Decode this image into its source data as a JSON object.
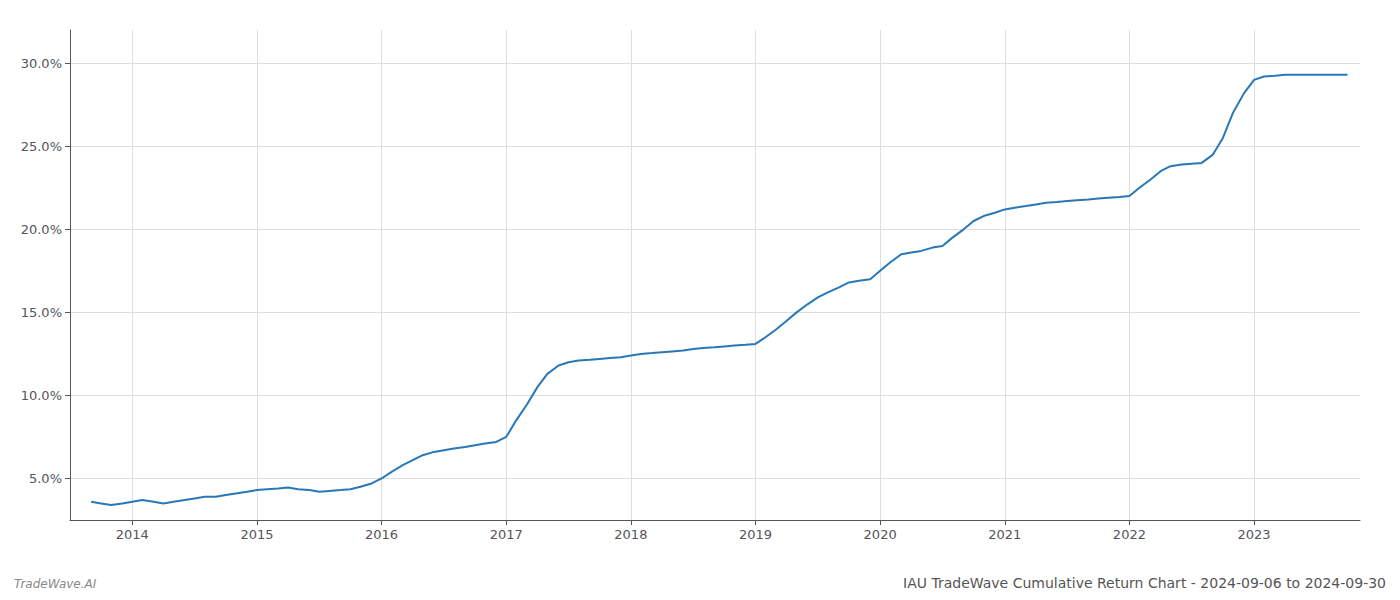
{
  "chart_data": {
    "type": "line",
    "title": "IAU TradeWave Cumulative Return Chart - 2024-09-06 to 2024-09-30",
    "annotations": [
      "TradeWave.AI"
    ],
    "color": "#2878b8",
    "grid": true,
    "x": [
      2013.67,
      2013.75,
      2013.83,
      2013.92,
      2014.0,
      2014.08,
      2014.17,
      2014.25,
      2014.33,
      2014.42,
      2014.5,
      2014.58,
      2014.67,
      2014.75,
      2014.83,
      2014.92,
      2015.0,
      2015.08,
      2015.17,
      2015.25,
      2015.33,
      2015.42,
      2015.5,
      2015.58,
      2015.67,
      2015.75,
      2015.83,
      2015.92,
      2016.0,
      2016.08,
      2016.17,
      2016.25,
      2016.33,
      2016.42,
      2016.5,
      2016.58,
      2016.67,
      2016.75,
      2016.83,
      2016.92,
      2017.0,
      2017.08,
      2017.17,
      2017.25,
      2017.33,
      2017.42,
      2017.5,
      2017.58,
      2017.67,
      2017.75,
      2017.83,
      2017.92,
      2018.0,
      2018.08,
      2018.17,
      2018.25,
      2018.33,
      2018.42,
      2018.5,
      2018.58,
      2018.67,
      2018.75,
      2018.83,
      2018.92,
      2019.0,
      2019.08,
      2019.17,
      2019.25,
      2019.33,
      2019.42,
      2019.5,
      2019.58,
      2019.67,
      2019.75,
      2019.83,
      2019.92,
      2020.0,
      2020.08,
      2020.17,
      2020.25,
      2020.33,
      2020.42,
      2020.5,
      2020.58,
      2020.67,
      2020.75,
      2020.83,
      2020.92,
      2021.0,
      2021.08,
      2021.17,
      2021.25,
      2021.33,
      2021.42,
      2021.5,
      2021.58,
      2021.67,
      2021.75,
      2021.83,
      2021.92,
      2022.0,
      2022.08,
      2022.17,
      2022.25,
      2022.33,
      2022.42,
      2022.5,
      2022.58,
      2022.67,
      2022.75,
      2022.83,
      2022.92,
      2023.0,
      2023.08,
      2023.17,
      2023.25,
      2023.33,
      2023.42,
      2023.5,
      2023.58,
      2023.67,
      2023.75
    ],
    "values": [
      3.6,
      3.5,
      3.4,
      3.5,
      3.6,
      3.7,
      3.6,
      3.5,
      3.6,
      3.7,
      3.8,
      3.9,
      3.9,
      4.0,
      4.1,
      4.2,
      4.3,
      4.35,
      4.4,
      4.45,
      4.35,
      4.3,
      4.2,
      4.25,
      4.3,
      4.35,
      4.5,
      4.7,
      5.0,
      5.4,
      5.8,
      6.1,
      6.4,
      6.6,
      6.7,
      6.8,
      6.9,
      7.0,
      7.1,
      7.2,
      7.5,
      8.5,
      9.5,
      10.5,
      11.3,
      11.8,
      12.0,
      12.1,
      12.15,
      12.2,
      12.25,
      12.3,
      12.4,
      12.5,
      12.55,
      12.6,
      12.65,
      12.7,
      12.8,
      12.85,
      12.9,
      12.95,
      13.0,
      13.05,
      13.1,
      13.5,
      14.0,
      14.5,
      15.0,
      15.5,
      15.9,
      16.2,
      16.5,
      16.8,
      16.9,
      17.0,
      17.5,
      18.0,
      18.5,
      18.6,
      18.7,
      18.9,
      19.0,
      19.5,
      20.0,
      20.5,
      20.8,
      21.0,
      21.2,
      21.3,
      21.4,
      21.5,
      21.6,
      21.65,
      21.7,
      21.75,
      21.8,
      21.85,
      21.9,
      21.95,
      22.0,
      22.5,
      23.0,
      23.5,
      23.8,
      23.9,
      23.95,
      24.0,
      24.5,
      25.5,
      27.0,
      28.2,
      29.0,
      29.2,
      29.25,
      29.3,
      29.3,
      29.3,
      29.3,
      29.3,
      29.3,
      29.3
    ],
    "xlim": [
      2013.5,
      2023.85
    ],
    "xticks": [
      2014,
      2015,
      2016,
      2017,
      2018,
      2019,
      2020,
      2021,
      2022,
      2023
    ],
    "ylim": [
      2.5,
      32.0
    ],
    "yticks": [
      {
        "value": 5.0,
        "label": "5.0%"
      },
      {
        "value": 10.0,
        "label": "10.0%"
      },
      {
        "value": 15.0,
        "label": "15.0%"
      },
      {
        "value": 20.0,
        "label": "20.0%"
      },
      {
        "value": 25.0,
        "label": "25.0%"
      },
      {
        "value": 30.0,
        "label": "30.0%"
      }
    ]
  }
}
